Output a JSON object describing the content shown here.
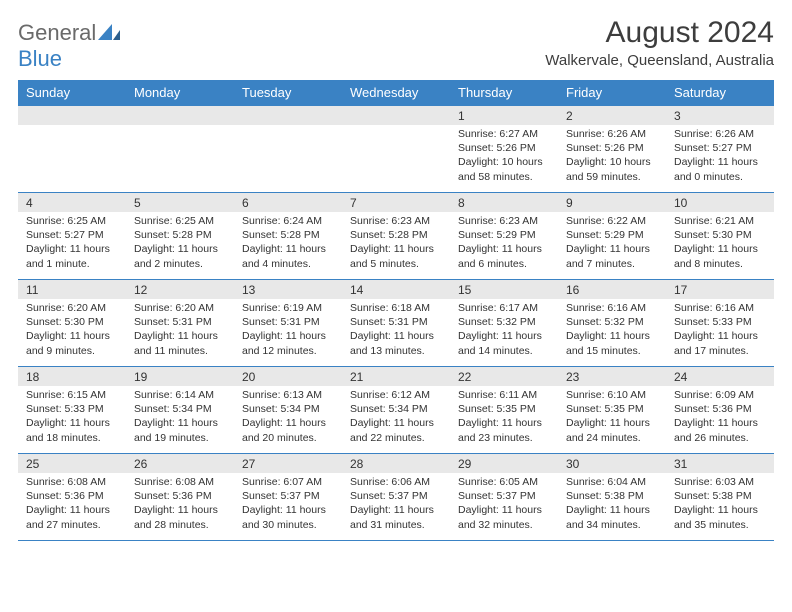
{
  "brand": {
    "part1": "General",
    "part2": "Blue"
  },
  "title": "August 2024",
  "location": "Walkervale, Queensland, Australia",
  "colors": {
    "accent": "#3a82c4",
    "header_text": "#ffffff",
    "daynum_bg": "#e8e8e8",
    "text": "#333333",
    "logo_gray": "#6a6a6a",
    "page_bg": "#ffffff"
  },
  "typography": {
    "month_title_fontsize": 30,
    "location_fontsize": 15,
    "day_header_fontsize": 13,
    "daynum_fontsize": 12,
    "detail_fontsize": 10.5
  },
  "day_names": [
    "Sunday",
    "Monday",
    "Tuesday",
    "Wednesday",
    "Thursday",
    "Friday",
    "Saturday"
  ],
  "weeks": [
    [
      null,
      null,
      null,
      null,
      {
        "n": "1",
        "sunrise": "6:27 AM",
        "sunset": "5:26 PM",
        "daylight": "10 hours and 58 minutes."
      },
      {
        "n": "2",
        "sunrise": "6:26 AM",
        "sunset": "5:26 PM",
        "daylight": "10 hours and 59 minutes."
      },
      {
        "n": "3",
        "sunrise": "6:26 AM",
        "sunset": "5:27 PM",
        "daylight": "11 hours and 0 minutes."
      }
    ],
    [
      {
        "n": "4",
        "sunrise": "6:25 AM",
        "sunset": "5:27 PM",
        "daylight": "11 hours and 1 minute."
      },
      {
        "n": "5",
        "sunrise": "6:25 AM",
        "sunset": "5:28 PM",
        "daylight": "11 hours and 2 minutes."
      },
      {
        "n": "6",
        "sunrise": "6:24 AM",
        "sunset": "5:28 PM",
        "daylight": "11 hours and 4 minutes."
      },
      {
        "n": "7",
        "sunrise": "6:23 AM",
        "sunset": "5:28 PM",
        "daylight": "11 hours and 5 minutes."
      },
      {
        "n": "8",
        "sunrise": "6:23 AM",
        "sunset": "5:29 PM",
        "daylight": "11 hours and 6 minutes."
      },
      {
        "n": "9",
        "sunrise": "6:22 AM",
        "sunset": "5:29 PM",
        "daylight": "11 hours and 7 minutes."
      },
      {
        "n": "10",
        "sunrise": "6:21 AM",
        "sunset": "5:30 PM",
        "daylight": "11 hours and 8 minutes."
      }
    ],
    [
      {
        "n": "11",
        "sunrise": "6:20 AM",
        "sunset": "5:30 PM",
        "daylight": "11 hours and 9 minutes."
      },
      {
        "n": "12",
        "sunrise": "6:20 AM",
        "sunset": "5:31 PM",
        "daylight": "11 hours and 11 minutes."
      },
      {
        "n": "13",
        "sunrise": "6:19 AM",
        "sunset": "5:31 PM",
        "daylight": "11 hours and 12 minutes."
      },
      {
        "n": "14",
        "sunrise": "6:18 AM",
        "sunset": "5:31 PM",
        "daylight": "11 hours and 13 minutes."
      },
      {
        "n": "15",
        "sunrise": "6:17 AM",
        "sunset": "5:32 PM",
        "daylight": "11 hours and 14 minutes."
      },
      {
        "n": "16",
        "sunrise": "6:16 AM",
        "sunset": "5:32 PM",
        "daylight": "11 hours and 15 minutes."
      },
      {
        "n": "17",
        "sunrise": "6:16 AM",
        "sunset": "5:33 PM",
        "daylight": "11 hours and 17 minutes."
      }
    ],
    [
      {
        "n": "18",
        "sunrise": "6:15 AM",
        "sunset": "5:33 PM",
        "daylight": "11 hours and 18 minutes."
      },
      {
        "n": "19",
        "sunrise": "6:14 AM",
        "sunset": "5:34 PM",
        "daylight": "11 hours and 19 minutes."
      },
      {
        "n": "20",
        "sunrise": "6:13 AM",
        "sunset": "5:34 PM",
        "daylight": "11 hours and 20 minutes."
      },
      {
        "n": "21",
        "sunrise": "6:12 AM",
        "sunset": "5:34 PM",
        "daylight": "11 hours and 22 minutes."
      },
      {
        "n": "22",
        "sunrise": "6:11 AM",
        "sunset": "5:35 PM",
        "daylight": "11 hours and 23 minutes."
      },
      {
        "n": "23",
        "sunrise": "6:10 AM",
        "sunset": "5:35 PM",
        "daylight": "11 hours and 24 minutes."
      },
      {
        "n": "24",
        "sunrise": "6:09 AM",
        "sunset": "5:36 PM",
        "daylight": "11 hours and 26 minutes."
      }
    ],
    [
      {
        "n": "25",
        "sunrise": "6:08 AM",
        "sunset": "5:36 PM",
        "daylight": "11 hours and 27 minutes."
      },
      {
        "n": "26",
        "sunrise": "6:08 AM",
        "sunset": "5:36 PM",
        "daylight": "11 hours and 28 minutes."
      },
      {
        "n": "27",
        "sunrise": "6:07 AM",
        "sunset": "5:37 PM",
        "daylight": "11 hours and 30 minutes."
      },
      {
        "n": "28",
        "sunrise": "6:06 AM",
        "sunset": "5:37 PM",
        "daylight": "11 hours and 31 minutes."
      },
      {
        "n": "29",
        "sunrise": "6:05 AM",
        "sunset": "5:37 PM",
        "daylight": "11 hours and 32 minutes."
      },
      {
        "n": "30",
        "sunrise": "6:04 AM",
        "sunset": "5:38 PM",
        "daylight": "11 hours and 34 minutes."
      },
      {
        "n": "31",
        "sunrise": "6:03 AM",
        "sunset": "5:38 PM",
        "daylight": "11 hours and 35 minutes."
      }
    ]
  ],
  "labels": {
    "sunrise": "Sunrise:",
    "sunset": "Sunset:",
    "daylight": "Daylight:"
  }
}
